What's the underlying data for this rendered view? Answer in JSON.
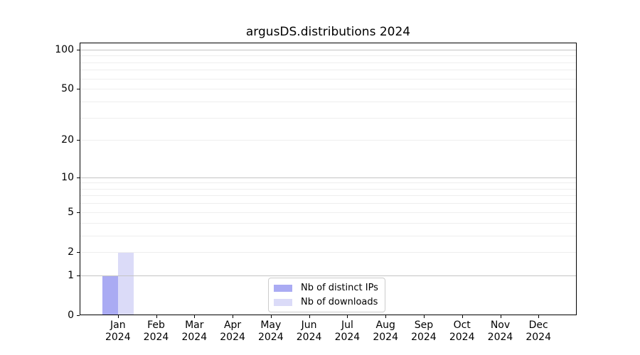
{
  "chart_data": {
    "type": "bar",
    "title": "argusDS.distributions 2024",
    "categories": [
      "Jan",
      "Feb",
      "Mar",
      "Apr",
      "May",
      "Jun",
      "Jul",
      "Aug",
      "Sep",
      "Oct",
      "Nov",
      "Dec"
    ],
    "x_tick_sublabel": "2024",
    "series": [
      {
        "name": "Nb of distinct IPs",
        "color": "#aaabf3",
        "values": [
          1,
          0,
          0,
          0,
          0,
          0,
          0,
          0,
          0,
          0,
          0,
          0
        ]
      },
      {
        "name": "Nb of downloads",
        "color": "#dbdbf8",
        "values": [
          2,
          0,
          0,
          0,
          0,
          0,
          0,
          0,
          0,
          0,
          0,
          0
        ]
      }
    ],
    "xlabel": "",
    "ylabel": "",
    "y_scale": "log1p",
    "ylim": [
      0,
      113
    ],
    "y_ticks": [
      0,
      1,
      2,
      5,
      10,
      20,
      50,
      100
    ],
    "grid": {
      "on": true,
      "major": [
        1,
        10,
        100
      ],
      "minor": [
        2,
        3,
        4,
        5,
        6,
        7,
        8,
        9,
        20,
        30,
        40,
        50,
        60,
        70,
        80,
        90
      ],
      "major_color": "#c4c4c4",
      "minor_color": "#eeeeee"
    },
    "spine_color": "#000000",
    "text_color": "#000000",
    "legend": {
      "position": "lower-center-inside",
      "entries": [
        "Nb of distinct IPs",
        "Nb of downloads"
      ]
    }
  }
}
